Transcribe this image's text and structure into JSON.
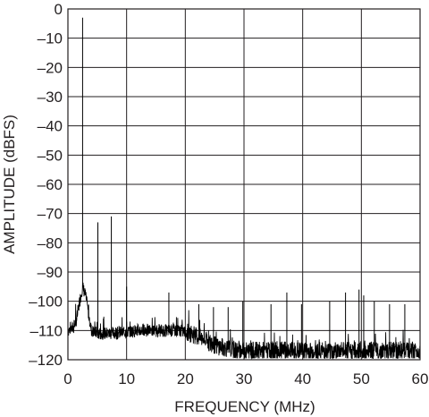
{
  "chart_data": {
    "type": "line",
    "xlabel": "FREQUENCY (MHz)",
    "ylabel": "AMPLITUDE (dBFS)",
    "xlim": [
      0,
      60
    ],
    "ylim": [
      -120,
      0
    ],
    "grid": true,
    "x_ticks": [
      0,
      10,
      20,
      30,
      40,
      50,
      60
    ],
    "y_ticks": [
      0,
      -10,
      -20,
      -30,
      -40,
      -50,
      -60,
      -70,
      -80,
      -90,
      -100,
      -110,
      -120
    ],
    "x_tick_labels": [
      "0",
      "10",
      "20",
      "30",
      "40",
      "50",
      "60"
    ],
    "y_tick_labels": [
      "0",
      "–10",
      "–20",
      "–30",
      "–40",
      "–50",
      "–60",
      "–70",
      "–80",
      "–90",
      "–100",
      "–110",
      "–120"
    ],
    "series": [
      {
        "noise_floor": {
          "x": [
            0,
            1,
            1.5,
            2,
            2.5,
            3,
            3.5,
            4,
            5,
            8,
            12,
            16,
            19,
            21,
            23,
            25,
            27,
            29,
            31,
            35,
            40,
            45,
            50,
            55,
            60
          ],
          "y": [
            -110,
            -109,
            -106,
            -100,
            -95,
            -98,
            -104,
            -110,
            -111,
            -111,
            -110,
            -110,
            -110,
            -111,
            -113,
            -115,
            -116,
            -117,
            -117,
            -117,
            -117,
            -117,
            -117,
            -117,
            -117
          ]
        },
        "spurs": [
          {
            "x": 2.5,
            "y": -3
          },
          {
            "x": 5.1,
            "y": -73
          },
          {
            "x": 7.4,
            "y": -71
          },
          {
            "x": 10,
            "y": -95
          },
          {
            "x": 17.2,
            "y": -97
          },
          {
            "x": 22.3,
            "y": -101
          },
          {
            "x": 24.8,
            "y": -102
          },
          {
            "x": 27.3,
            "y": -102
          },
          {
            "x": 29.8,
            "y": -100
          },
          {
            "x": 34.6,
            "y": -101
          },
          {
            "x": 37.3,
            "y": -97
          },
          {
            "x": 39.8,
            "y": -101
          },
          {
            "x": 44.6,
            "y": -100
          },
          {
            "x": 47.3,
            "y": -97
          },
          {
            "x": 49.6,
            "y": -96
          },
          {
            "x": 50.4,
            "y": -98
          },
          {
            "x": 52.2,
            "y": -100
          },
          {
            "x": 54.8,
            "y": -101
          },
          {
            "x": 57.4,
            "y": -101
          }
        ]
      }
    ]
  }
}
